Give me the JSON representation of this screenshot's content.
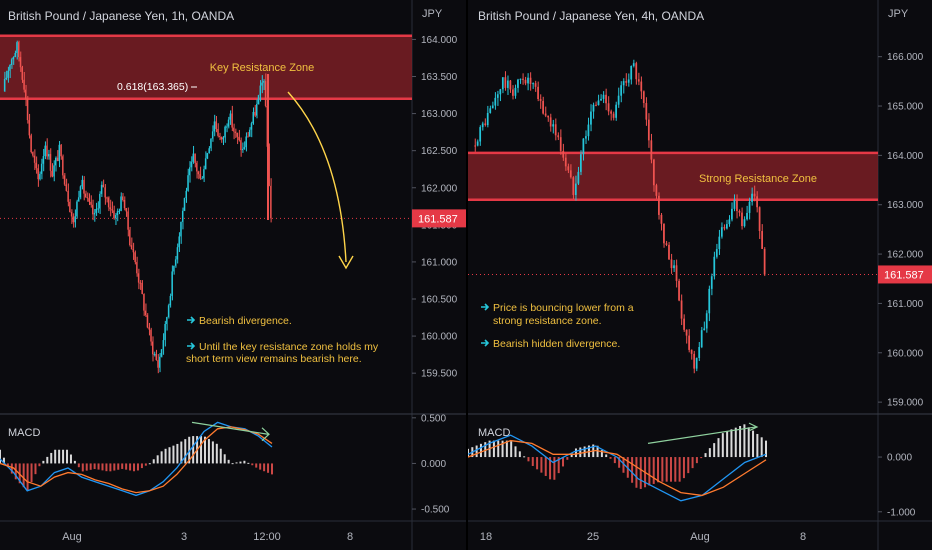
{
  "colors": {
    "up": "#26c6da",
    "down": "#ef5350",
    "zone": "#7a1f24",
    "zone_edge": "#e53946",
    "text_note": "#f0c040",
    "arrow": "#ffd54a",
    "macd_line": "#2196f3",
    "signal_line": "#ff7a2e",
    "hist_up": "#ffffff",
    "hist_down": "#ef5350",
    "price_tag": "#e53946"
  },
  "charts": [
    {
      "title": "British Pound / Japanese Yen, 1h, OANDA",
      "currency": "JPY",
      "y_ticks": [
        "164.000",
        "163.500",
        "163.000",
        "162.500",
        "162.000",
        "161.500",
        "161.000",
        "160.500",
        "160.000",
        "159.500"
      ],
      "last_price": "161.587",
      "zone_label": "Key Resistance Zone",
      "fib_label": "0.618(163.365)",
      "notes": [
        {
          "icon": "arrow-right-icon",
          "lines": [
            "Bearish divergence."
          ]
        },
        {
          "icon": "arrow-right-icon",
          "lines": [
            "Until the key resistance zone holds my",
            "short term view remains bearish here."
          ]
        }
      ],
      "macd_label": "MACD",
      "macd_ticks": [
        "0.500",
        "0.000",
        "-0.500"
      ],
      "x_ticks": [
        "Aug",
        "3",
        "12:00",
        "8"
      ]
    },
    {
      "title": "British Pound / Japanese Yen, 4h, OANDA",
      "currency": "JPY",
      "y_ticks": [
        "166.000",
        "165.000",
        "164.000",
        "163.000",
        "162.000",
        "161.000",
        "160.000",
        "159.000"
      ],
      "last_price": "161.587",
      "zone_label": "Strong Resistance Zone",
      "notes": [
        {
          "icon": "arrow-right-icon",
          "lines": [
            "Price is bouncing lower from a",
            "strong resistance zone."
          ]
        },
        {
          "icon": "arrow-right-icon",
          "lines": [
            "Bearish hidden divergence."
          ]
        }
      ],
      "macd_label": "MACD",
      "macd_ticks": [
        "0.000",
        "-1.000"
      ],
      "x_ticks": [
        "18",
        "25",
        "Aug",
        "8"
      ]
    }
  ],
  "chart_data": [
    {
      "type": "candlestick",
      "title": "British Pound / Japanese Yen, 1h, OANDA",
      "ylabel": "JPY",
      "ylim": [
        159.3,
        164.1
      ],
      "x_ticks": [
        "Aug",
        "3",
        "12:00",
        "8"
      ],
      "resistance_zone": [
        163.2,
        164.05
      ],
      "fib_level": 163.365,
      "last_price": 161.587,
      "price_path": [
        163.3,
        163.7,
        163.9,
        163.4,
        162.5,
        162.1,
        162.6,
        162.2,
        162.5,
        162.0,
        161.5,
        162.1,
        161.8,
        161.6,
        162.0,
        161.8,
        161.6,
        161.9,
        161.3,
        160.9,
        160.4,
        159.9,
        159.6,
        160.1,
        160.8,
        161.4,
        162.0,
        162.4,
        162.1,
        162.5,
        162.9,
        162.6,
        163.0,
        162.7,
        162.5,
        162.8,
        163.1,
        163.5,
        161.6
      ],
      "macd": {
        "line": [
          0.05,
          -0.1,
          -0.3,
          -0.25,
          -0.1,
          -0.05,
          -0.15,
          -0.2,
          -0.25,
          -0.3,
          -0.35,
          -0.3,
          -0.2,
          -0.05,
          0.15,
          0.35,
          0.45,
          0.4,
          0.38,
          0.3,
          0.18
        ],
        "signal": [
          0.0,
          -0.05,
          -0.2,
          -0.25,
          -0.15,
          -0.1,
          -0.12,
          -0.18,
          -0.22,
          -0.28,
          -0.32,
          -0.3,
          -0.25,
          -0.12,
          0.05,
          0.25,
          0.38,
          0.4,
          0.37,
          0.32,
          0.22
        ],
        "ylim": [
          -0.62,
          0.52
        ]
      }
    },
    {
      "type": "candlestick",
      "title": "British Pound / Japanese Yen, 4h, OANDA",
      "ylabel": "JPY",
      "ylim": [
        158.8,
        166.5
      ],
      "x_ticks": [
        "18",
        "25",
        "Aug",
        "8"
      ],
      "resistance_zone": [
        163.1,
        164.05
      ],
      "last_price": 161.587,
      "price_path": [
        164.2,
        164.6,
        165.0,
        165.5,
        165.3,
        165.6,
        165.4,
        164.9,
        164.6,
        164.0,
        163.3,
        164.3,
        165.0,
        165.2,
        164.8,
        165.5,
        165.8,
        165.0,
        163.5,
        162.2,
        161.7,
        160.5,
        159.8,
        160.5,
        162.0,
        162.6,
        163.0,
        162.6,
        163.3,
        161.6
      ],
      "macd": {
        "line": [
          0.05,
          0.25,
          0.4,
          0.2,
          -0.1,
          0.1,
          0.2,
          0.0,
          -0.4,
          -0.6,
          -0.8,
          -0.7,
          -0.4,
          -0.1,
          0.05
        ],
        "signal": [
          0.0,
          0.15,
          0.3,
          0.25,
          0.05,
          0.05,
          0.12,
          0.05,
          -0.2,
          -0.45,
          -0.65,
          -0.7,
          -0.55,
          -0.3,
          -0.05
        ],
        "ylim": [
          -1.15,
          0.75
        ]
      }
    }
  ]
}
